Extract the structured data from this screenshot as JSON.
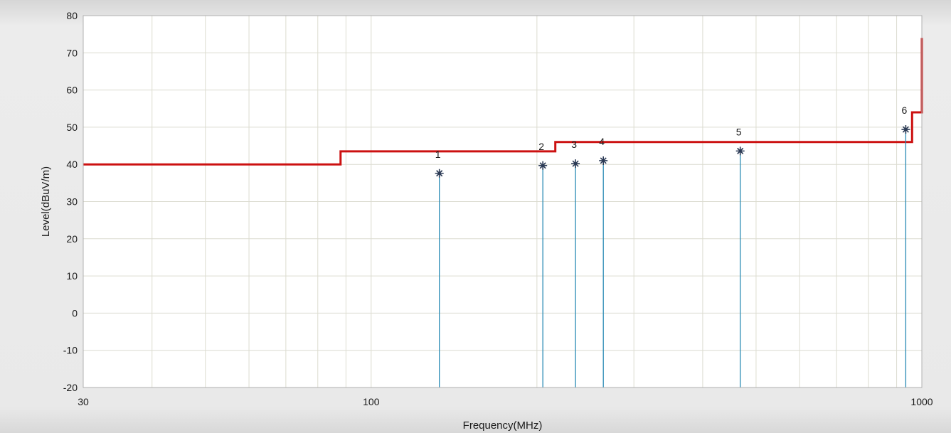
{
  "chart_data": {
    "type": "line",
    "xlabel": "Frequency(MHz)",
    "ylabel": "Level(dBuV/m)",
    "xscale": "log",
    "xlim": [
      30,
      1000
    ],
    "ylim": [
      -20,
      80
    ],
    "xticks": [
      "30",
      "100",
      "1000"
    ],
    "yticks": [
      "-20",
      "-10",
      "0",
      "10",
      "20",
      "30",
      "40",
      "50",
      "60",
      "70",
      "80"
    ],
    "grid": true,
    "legend": "none",
    "limit_line": {
      "color": "#cc1111",
      "points": [
        [
          30,
          40.0
        ],
        [
          88,
          40.0
        ],
        [
          88,
          43.5
        ],
        [
          216,
          43.5
        ],
        [
          216,
          46.0
        ],
        [
          960,
          46.0
        ],
        [
          960,
          54.0
        ],
        [
          1000,
          54.0
        ],
        [
          1000,
          74.0
        ]
      ]
    },
    "markers": {
      "color": "#2a8bb5",
      "points": [
        {
          "label": "1",
          "freq": 133.0,
          "level": 37.6
        },
        {
          "label": "2",
          "freq": 205.0,
          "level": 39.7
        },
        {
          "label": "3",
          "freq": 235.0,
          "level": 40.2
        },
        {
          "label": "4",
          "freq": 264.0,
          "level": 41.0
        },
        {
          "label": "5",
          "freq": 468.0,
          "level": 43.6
        },
        {
          "label": "6",
          "freq": 935.0,
          "level": 49.4
        }
      ]
    }
  }
}
